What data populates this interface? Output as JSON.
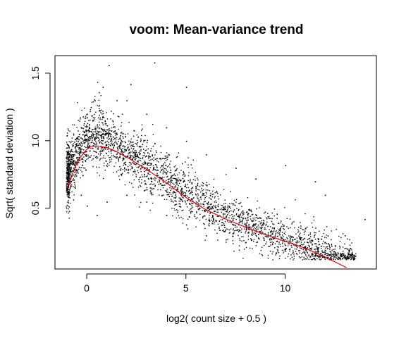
{
  "chart_data": {
    "type": "scatter",
    "title": "voom: Mean-variance trend",
    "xlabel": "log2( count size + 0.5 )",
    "ylabel": "Sqrt( standard deviation )",
    "xlim": [
      -1.6,
      14.6
    ],
    "ylim": [
      0.05,
      1.63
    ],
    "xticks": [
      0,
      5,
      10
    ],
    "yticks": [
      0.5,
      1.0,
      1.5
    ],
    "xtick_labels": [
      "0",
      "5",
      "10"
    ],
    "ytick_labels": [
      "0.5",
      "1.0",
      "1.5"
    ],
    "grid": false,
    "legend": "none",
    "point_color": "#000000",
    "trend_color": "#e8000b",
    "series": [
      {
        "type": "scatter",
        "values_note_points": [
          [
            -0.9,
            0.62
          ],
          [
            -0.9,
            0.48
          ],
          [
            -0.8,
            0.7
          ],
          [
            -0.7,
            0.85
          ],
          [
            -0.6,
            0.95
          ],
          [
            -0.5,
            1.02
          ],
          [
            -0.4,
            1.05
          ],
          [
            -0.3,
            1.1
          ],
          [
            -0.2,
            1.18
          ],
          [
            0.0,
            1.2
          ],
          [
            0.2,
            1.25
          ],
          [
            0.4,
            1.3
          ],
          [
            0.6,
            1.36
          ],
          [
            0.8,
            1.4
          ],
          [
            1.1,
            1.56
          ],
          [
            1.5,
            1.3
          ],
          [
            2.2,
            1.42
          ],
          [
            3.4,
            1.58
          ],
          [
            5.0,
            1.4
          ],
          [
            0.0,
            0.52
          ],
          [
            -0.3,
            0.6
          ],
          [
            0.5,
            0.45
          ],
          [
            1.0,
            0.55
          ],
          [
            2.0,
            0.6
          ],
          [
            3.0,
            0.55
          ],
          [
            4.0,
            0.45
          ],
          [
            5.0,
            0.38
          ],
          [
            6.0,
            0.3
          ],
          [
            7.0,
            0.27
          ],
          [
            8.0,
            0.25
          ],
          [
            9.0,
            0.24
          ],
          [
            10.0,
            0.2
          ],
          [
            11.0,
            0.22
          ],
          [
            12.0,
            0.25
          ],
          [
            13.0,
            0.3
          ],
          [
            14.0,
            0.42
          ],
          [
            12.0,
            0.6
          ],
          [
            11.5,
            0.7
          ],
          [
            10.0,
            0.82
          ],
          [
            8.5,
            0.72
          ],
          [
            7.5,
            0.8
          ],
          [
            6.0,
            0.9
          ],
          [
            5.0,
            1.0
          ],
          [
            4.0,
            1.1
          ],
          [
            3.0,
            1.2
          ],
          [
            2.0,
            1.3
          ]
        ]
      },
      {
        "type": "line",
        "x": [
          -1.0,
          -0.8,
          -0.6,
          -0.4,
          -0.2,
          0.0,
          0.2,
          0.5,
          1.0,
          1.5,
          2.0,
          3.0,
          4.0,
          5.0,
          6.0,
          7.0,
          8.0,
          9.0,
          10.0,
          11.0,
          12.0,
          13.1
        ],
        "values": [
          0.65,
          0.72,
          0.8,
          0.86,
          0.9,
          0.935,
          0.955,
          0.962,
          0.95,
          0.92,
          0.88,
          0.79,
          0.69,
          0.58,
          0.49,
          0.42,
          0.36,
          0.305,
          0.255,
          0.205,
          0.14,
          0.06
        ]
      }
    ]
  }
}
